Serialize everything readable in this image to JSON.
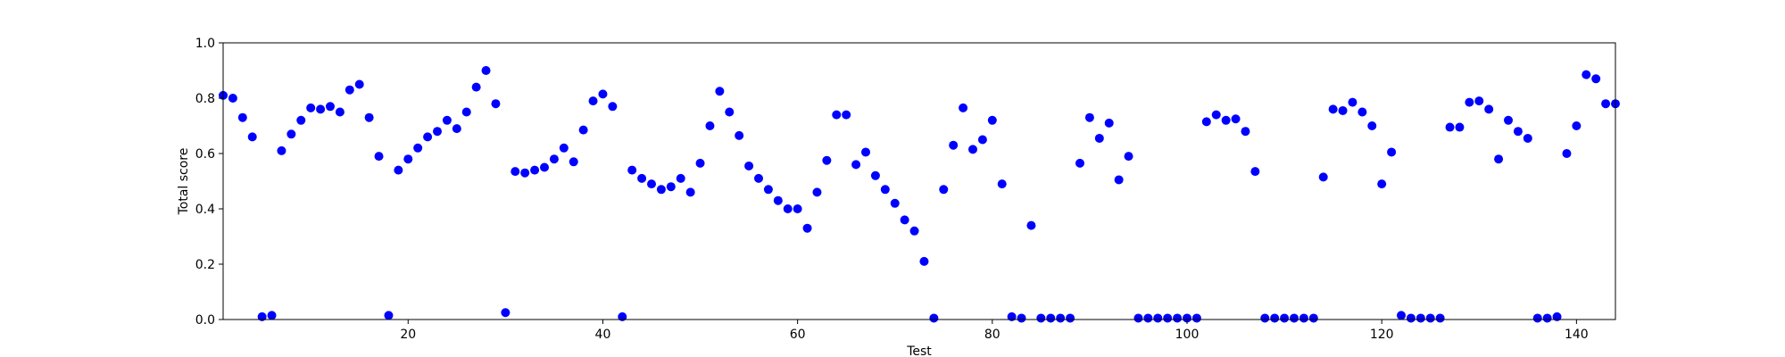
{
  "chart_data": {
    "type": "scatter",
    "title": "",
    "xlabel": "Test",
    "ylabel": "Total score",
    "xlim": [
      1,
      144
    ],
    "ylim": [
      0.0,
      1.0
    ],
    "grid": false,
    "marker_color": "#0000ff",
    "xticks": [
      20,
      40,
      60,
      80,
      100,
      120,
      140
    ],
    "xtick_labels": [
      "20",
      "40",
      "60",
      "80",
      "100",
      "120",
      "140"
    ],
    "yticks": [
      0.0,
      0.2,
      0.4,
      0.6,
      0.8,
      1.0
    ],
    "ytick_labels": [
      "0.0",
      "0.2",
      "0.4",
      "0.6",
      "0.8",
      "1.0"
    ],
    "x": [
      1,
      2,
      3,
      4,
      5,
      6,
      7,
      8,
      9,
      10,
      11,
      12,
      13,
      14,
      15,
      16,
      17,
      18,
      19,
      20,
      21,
      22,
      23,
      24,
      25,
      26,
      27,
      28,
      29,
      30,
      31,
      32,
      33,
      34,
      35,
      36,
      37,
      38,
      39,
      40,
      41,
      42,
      43,
      44,
      45,
      46,
      47,
      48,
      49,
      50,
      51,
      52,
      53,
      54,
      55,
      56,
      57,
      58,
      59,
      60,
      61,
      62,
      63,
      64,
      65,
      66,
      67,
      68,
      69,
      70,
      71,
      72,
      73,
      74,
      75,
      76,
      77,
      78,
      79,
      80,
      81,
      82,
      83,
      84,
      85,
      86,
      87,
      88,
      89,
      90,
      91,
      92,
      93,
      94,
      95,
      96,
      97,
      98,
      99,
      100,
      101,
      102,
      103,
      104,
      105,
      106,
      107,
      108,
      109,
      110,
      111,
      112,
      113,
      114,
      115,
      116,
      117,
      118,
      119,
      120,
      121,
      122,
      123,
      124,
      125,
      126,
      127,
      128,
      129,
      130,
      131,
      132,
      133,
      134,
      135,
      136,
      137,
      138,
      139,
      140,
      141,
      142,
      143,
      144
    ],
    "y": [
      0.81,
      0.8,
      0.73,
      0.66,
      0.01,
      0.015,
      0.61,
      0.67,
      0.72,
      0.765,
      0.76,
      0.77,
      0.75,
      0.83,
      0.85,
      0.73,
      0.59,
      0.015,
      0.54,
      0.58,
      0.62,
      0.66,
      0.68,
      0.72,
      0.69,
      0.75,
      0.84,
      0.9,
      0.78,
      0.025,
      0.535,
      0.53,
      0.54,
      0.55,
      0.58,
      0.62,
      0.57,
      0.685,
      0.79,
      0.815,
      0.77,
      0.01,
      0.54,
      0.51,
      0.49,
      0.47,
      0.48,
      0.51,
      0.46,
      0.565,
      0.7,
      0.825,
      0.75,
      0.665,
      0.555,
      0.51,
      0.47,
      0.43,
      0.4,
      0.4,
      0.33,
      0.46,
      0.575,
      0.74,
      0.74,
      0.56,
      0.605,
      0.52,
      0.47,
      0.42,
      0.36,
      0.32,
      0.21,
      0.005,
      0.47,
      0.63,
      0.765,
      0.615,
      0.65,
      0.72,
      0.49,
      0.01,
      0.005,
      0.34,
      0.005,
      0.005,
      0.005,
      0.005,
      0.565,
      0.73,
      0.655,
      0.71,
      0.505,
      0.59,
      0.005,
      0.005,
      0.005,
      0.005,
      0.005,
      0.005,
      0.005,
      0.715,
      0.74,
      0.72,
      0.725,
      0.68,
      0.535,
      0.005,
      0.005,
      0.005,
      0.005,
      0.005,
      0.005,
      0.515,
      0.76,
      0.755,
      0.785,
      0.75,
      0.7,
      0.49,
      0.605,
      0.015,
      0.005,
      0.005,
      0.005,
      0.005,
      0.695,
      0.695,
      0.785,
      0.79,
      0.76,
      0.58,
      0.72,
      0.68,
      0.655,
      0.005,
      0.005,
      0.01,
      0.6,
      0.7,
      0.885,
      0.87,
      0.78,
      0.78
    ]
  }
}
